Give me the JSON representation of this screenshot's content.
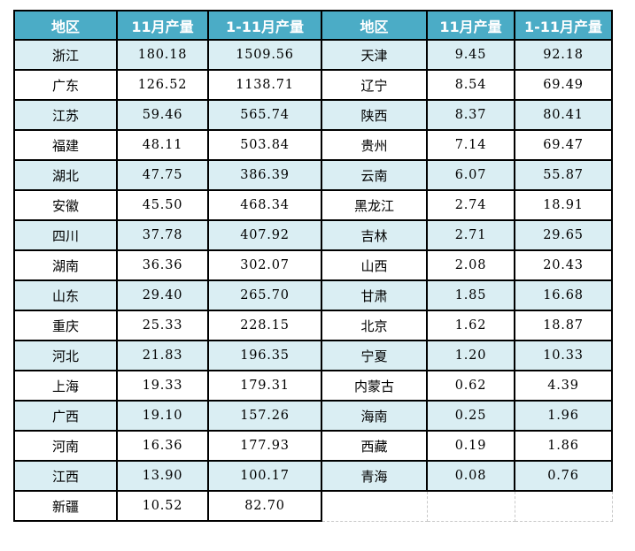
{
  "colors": {
    "header_bg": "#4bacc6",
    "header_text": "#ffffff",
    "band_row_bg": "#daeef3",
    "plain_row_bg": "#ffffff",
    "grid_border": "#000000",
    "ghost_border": "#c8c8c8",
    "cell_text": "#000000",
    "page_bg": "#ffffff"
  },
  "chart_data": {
    "type": "table",
    "title": "",
    "headers": [
      "地区",
      "11月产量",
      "1-11月产量"
    ],
    "header_cells": [
      "地区",
      "11月产量",
      "1-11月产量",
      "地区",
      "11月产量",
      "1-11月产量"
    ],
    "left_rows": [
      [
        "浙江",
        "180.18",
        "1509.56"
      ],
      [
        "广东",
        "126.52",
        "1138.71"
      ],
      [
        "江苏",
        "59.46",
        "565.74"
      ],
      [
        "福建",
        "48.11",
        "503.84"
      ],
      [
        "湖北",
        "47.75",
        "386.39"
      ],
      [
        "安徽",
        "45.50",
        "468.34"
      ],
      [
        "四川",
        "37.78",
        "407.92"
      ],
      [
        "湖南",
        "36.36",
        "302.07"
      ],
      [
        "山东",
        "29.40",
        "265.70"
      ],
      [
        "重庆",
        "25.33",
        "228.15"
      ],
      [
        "河北",
        "21.83",
        "196.35"
      ],
      [
        "上海",
        "19.33",
        "179.31"
      ],
      [
        "广西",
        "19.10",
        "157.26"
      ],
      [
        "河南",
        "16.36",
        "177.93"
      ],
      [
        "江西",
        "13.90",
        "100.17"
      ],
      [
        "新疆",
        "10.52",
        "82.70"
      ]
    ],
    "right_rows": [
      [
        "天津",
        "9.45",
        "92.18"
      ],
      [
        "辽宁",
        "8.54",
        "69.49"
      ],
      [
        "陕西",
        "8.37",
        "80.41"
      ],
      [
        "贵州",
        "7.14",
        "69.47"
      ],
      [
        "云南",
        "6.07",
        "55.87"
      ],
      [
        "黑龙江",
        "2.74",
        "18.91"
      ],
      [
        "吉林",
        "2.71",
        "29.65"
      ],
      [
        "山西",
        "2.08",
        "20.43"
      ],
      [
        "甘肃",
        "1.85",
        "16.68"
      ],
      [
        "北京",
        "1.62",
        "18.87"
      ],
      [
        "宁夏",
        "1.20",
        "10.33"
      ],
      [
        "内蒙古",
        "0.62",
        "4.39"
      ],
      [
        "海南",
        "0.25",
        "1.96"
      ],
      [
        "西藏",
        "0.19",
        "1.86"
      ],
      [
        "青海",
        "0.08",
        "0.76"
      ]
    ]
  }
}
